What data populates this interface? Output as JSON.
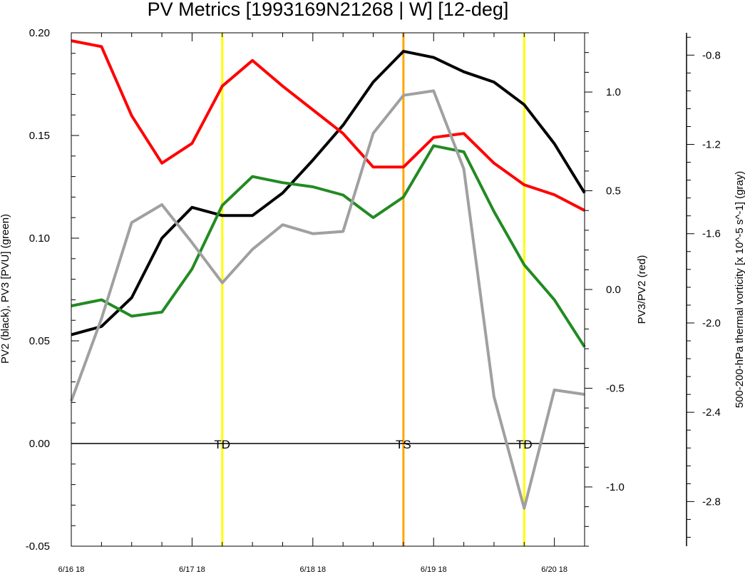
{
  "chart_data": {
    "type": "line",
    "title": "PV Metrics [1993169N21268 | W] [12-deg]",
    "xlabel": "",
    "x_tick_labels": [
      "6/16 18",
      "6/17 18",
      "6/18 18",
      "6/19 18",
      "6/20 18"
    ],
    "x_tick_steps": [
      0,
      4,
      8,
      12,
      16
    ],
    "x_steps": [
      0,
      1,
      2,
      3,
      4,
      5,
      6,
      7,
      8,
      9,
      10,
      11,
      12,
      13,
      14,
      15,
      16,
      17
    ],
    "xlim": [
      0,
      17
    ],
    "axes": {
      "left": {
        "label": "PV2 (black), PV3 [PVU] (green)",
        "ylim": [
          -0.05,
          0.2
        ],
        "ticks": [
          "-0.05",
          "0.00",
          "0.05",
          "0.10",
          "0.15",
          "0.20"
        ]
      },
      "right1": {
        "label": "PV3/PV2 (red)",
        "ylim": [
          -1.3,
          1.3
        ],
        "ticks": [
          "-1.0",
          "-0.5",
          "0.0",
          "0.5",
          "1.0"
        ]
      },
      "right2": {
        "label": "500-200-hPa thermal vorticity [x 10^-5 s^-1] (gray)",
        "ylim": [
          -3.0,
          -0.7
        ],
        "ticks": [
          "-2.8",
          "-2.4",
          "-2.0",
          "-1.6",
          "-1.2",
          "-0.8"
        ]
      }
    },
    "series": [
      {
        "name": "PV2",
        "color": "#000000",
        "axis": "left",
        "values": [
          0.053,
          0.057,
          0.071,
          0.1,
          0.115,
          0.111,
          0.111,
          0.122,
          0.138,
          0.155,
          0.176,
          0.191,
          0.188,
          0.181,
          0.176,
          0.165,
          0.146,
          0.122
        ]
      },
      {
        "name": "PV3",
        "color": "#228b22",
        "axis": "left",
        "values": [
          0.067,
          0.07,
          0.062,
          0.064,
          0.085,
          0.116,
          0.13,
          0.127,
          0.125,
          0.121,
          0.11,
          0.12,
          0.145,
          0.142,
          0.113,
          0.087,
          0.07,
          0.047
        ]
      },
      {
        "name": "PV3/PV2",
        "color": "#ff0000",
        "axis": "right1",
        "values": [
          1.26,
          1.23,
          0.88,
          0.64,
          0.74,
          1.03,
          1.16,
          1.03,
          0.91,
          0.79,
          0.62,
          0.62,
          0.77,
          0.79,
          0.64,
          0.53,
          0.48,
          0.4
        ]
      },
      {
        "name": "thermal vorticity",
        "color": "#a0a0a0",
        "axis": "right2",
        "values": [
          -2.35,
          -1.98,
          -1.55,
          -1.47,
          -1.64,
          -1.82,
          -1.67,
          -1.56,
          -1.6,
          -1.59,
          -1.15,
          -0.98,
          -0.96,
          -1.31,
          -2.33,
          -2.83,
          -2.3,
          -2.32
        ]
      }
    ],
    "zero_line": {
      "axis": "left",
      "value": 0.0,
      "color": "#000000"
    },
    "markers": [
      {
        "label": "TD",
        "step": 5,
        "color": "#ffff00"
      },
      {
        "label": "TS",
        "step": 11,
        "color": "#ffa500"
      },
      {
        "label": "TD",
        "step": 15,
        "color": "#ffff00"
      }
    ],
    "grid": false
  }
}
